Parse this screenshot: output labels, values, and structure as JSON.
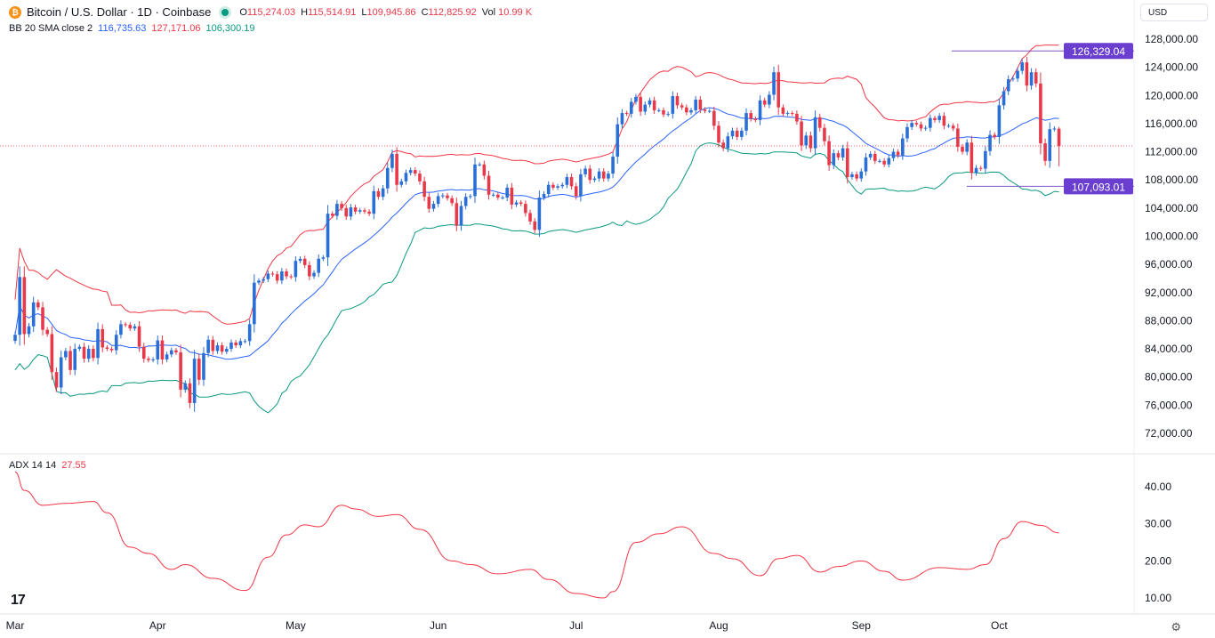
{
  "header": {
    "title": "Bitcoin / U.S. Dollar · 1D · Coinbase",
    "o_label": "O",
    "o": "115,274.03",
    "h_label": "H",
    "h": "115,514.91",
    "l_label": "L",
    "l": "109,945.86",
    "c_label": "C",
    "c": "112,825.92",
    "vol_label": "Vol",
    "vol": "10.99 K",
    "currency": "USD"
  },
  "bb": {
    "label": "BB 20 SMA close 2",
    "basis": "116,735.63",
    "upper": "127,171.06",
    "lower": "106,300.19"
  },
  "adx_legend": {
    "label": "ADX 14 14",
    "value": "27.55"
  },
  "colors": {
    "up": "#2a6fd6",
    "down": "#e8394a",
    "bb_upper": "#f23645",
    "bb_basis": "#2962ff",
    "bb_lower": "#089981",
    "adx": "#f23645",
    "hline": "#7e57c2",
    "label_bg": "#6a3fd0"
  },
  "chart_data": [
    {
      "type": "candlestick",
      "start_date": "03-01",
      "closes": [
        86000,
        94200,
        86100,
        87200,
        90600,
        89900,
        86700,
        86100,
        80700,
        78500,
        82800,
        83700,
        81000,
        84000,
        84300,
        82600,
        84000,
        82700,
        86800,
        84200,
        84000,
        83800,
        86000,
        87500,
        87400,
        86900,
        87200,
        84300,
        82600,
        82400,
        82500,
        85200,
        82500,
        83200,
        83800,
        83500,
        78200,
        79100,
        76300,
        82600,
        79600,
        83400,
        85300,
        83700,
        84500,
        83600,
        84000,
        84900,
        84500,
        85100,
        85100,
        87500,
        93400,
        93700,
        93900,
        94700,
        94600,
        93700,
        95000,
        94300,
        94200,
        96500,
        96800,
        95900,
        94300,
        94800,
        96800,
        97000,
        103200,
        102900,
        104600,
        104000,
        102800,
        104100,
        103500,
        103700,
        103500,
        103200,
        106400,
        105600,
        106800,
        109700,
        111700,
        107300,
        107800,
        109000,
        109400,
        108900,
        107800,
        105600,
        103900,
        104600,
        105700,
        105800,
        105400,
        104700,
        101500,
        104300,
        105600,
        105700,
        110200,
        110200,
        108600,
        105900,
        105900,
        105500,
        105500,
        106900,
        104500,
        104800,
        104600,
        103300,
        102100,
        100900,
        105500,
        106000,
        107300,
        106900,
        107100,
        107300,
        108400,
        107100,
        105700,
        108800,
        109600,
        108000,
        108200,
        109200,
        108200,
        108900,
        111300,
        115900,
        117500,
        117400,
        119100,
        119800,
        117700,
        118700,
        119300,
        117900,
        117900,
        117300,
        117400,
        119900,
        118600,
        118300,
        117600,
        117900,
        119400,
        118000,
        117800,
        117800,
        115700,
        113300,
        112500,
        114200,
        115000,
        114100,
        115000,
        117500,
        116700,
        116500,
        119300,
        118700,
        120100,
        123300,
        118300,
        117400,
        117500,
        117400,
        116300,
        112900,
        114300,
        112500,
        116900,
        115400,
        113500,
        110100,
        111800,
        111200,
        112500,
        108400,
        108800,
        108200,
        109200,
        111200,
        111700,
        110700,
        110700,
        110200,
        111100,
        112000,
        111500,
        113900,
        115500,
        116100,
        115900,
        115300,
        115400,
        116800,
        116500,
        117100,
        115700,
        115700,
        115300,
        112700,
        112000,
        113300,
        109000,
        109700,
        109600,
        112100,
        114400,
        114100,
        118600,
        120600,
        122300,
        122400,
        123500,
        124700,
        121400,
        123300,
        121700,
        113200,
        110700,
        115200,
        115300,
        112826
      ],
      "last_candle": {
        "open": 115274.03,
        "high": 115514.91,
        "low": 109945.86,
        "close": 112825.92
      },
      "ylim": [
        70000,
        130000
      ],
      "y_ticks": [
        "128,000.00",
        "124,000.00",
        "120,000.00",
        "116,000.00",
        "112,000.00",
        "108,000.00",
        "104,000.00",
        "100,000.00",
        "96,000.00",
        "92,000.00",
        "88,000.00",
        "84,000.00",
        "80,000.00",
        "76,000.00",
        "72,000.00"
      ],
      "x_ticks": [
        "Mar",
        "Apr",
        "May",
        "Jun",
        "Jul",
        "Aug",
        "Sep",
        "Oct"
      ],
      "indicator": "Bollinger Bands 20, 2",
      "horizontal_lines": [
        {
          "value": 126329.04,
          "label": "126,329.04"
        },
        {
          "value": 107093.01,
          "label": "107,093.01"
        }
      ],
      "current_price": 112825.92
    },
    {
      "type": "line",
      "ylim": [
        5,
        46
      ],
      "y_ticks": [
        "40.00",
        "30.00",
        "20.00",
        "10.00"
      ],
      "points": [
        [
          "03-01",
          44
        ],
        [
          "03-03",
          39
        ],
        [
          "03-07",
          35
        ],
        [
          "03-12",
          35.5
        ],
        [
          "03-18",
          36
        ],
        [
          "03-21",
          33
        ],
        [
          "03-26",
          23.7
        ],
        [
          "03-30",
          22
        ],
        [
          "04-04",
          17.7
        ],
        [
          "04-07",
          19
        ],
        [
          "04-13",
          15.3
        ],
        [
          "04-20",
          12
        ],
        [
          "04-25",
          21
        ],
        [
          "04-29",
          27
        ],
        [
          "05-03",
          29.7
        ],
        [
          "05-06",
          29.2
        ],
        [
          "05-11",
          35
        ],
        [
          "05-14",
          34
        ],
        [
          "05-19",
          32
        ],
        [
          "05-23",
          32.5
        ],
        [
          "05-28",
          28.5
        ],
        [
          "06-04",
          20
        ],
        [
          "06-08",
          19
        ],
        [
          "06-14",
          16.5
        ],
        [
          "06-21",
          17.7
        ],
        [
          "06-25",
          15
        ],
        [
          "07-01",
          11.2
        ],
        [
          "07-07",
          10
        ],
        [
          "07-09",
          11.7
        ],
        [
          "07-14",
          25
        ],
        [
          "07-19",
          27.3
        ],
        [
          "07-24",
          29.2
        ],
        [
          "07-31",
          22
        ],
        [
          "08-04",
          20.6
        ],
        [
          "08-10",
          16
        ],
        [
          "08-14",
          20.6
        ],
        [
          "08-18",
          21.5
        ],
        [
          "08-23",
          17
        ],
        [
          "08-27",
          18.5
        ],
        [
          "09-01",
          20
        ],
        [
          "09-06",
          17.2
        ],
        [
          "09-10",
          14.8
        ],
        [
          "09-18",
          18.2
        ],
        [
          "09-24",
          17.7
        ],
        [
          "09-28",
          19
        ],
        [
          "10-02",
          26
        ],
        [
          "10-06",
          30.6
        ],
        [
          "10-10",
          29.6
        ],
        [
          "10-14",
          27.55
        ]
      ]
    }
  ]
}
